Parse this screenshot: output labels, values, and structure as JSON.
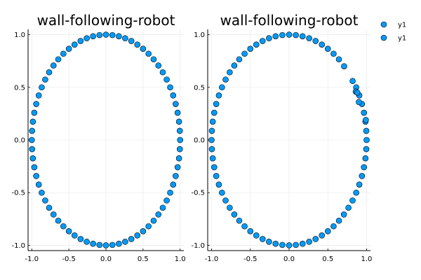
{
  "legend": {
    "position": "top-right",
    "entries": [
      {
        "name": "y1",
        "color": "#009af9"
      },
      {
        "name": "y1",
        "color": "#009af9"
      }
    ]
  },
  "chart_data": [
    {
      "type": "scatter",
      "title": "wall-following-robot",
      "xlabel": "",
      "ylabel": "",
      "xlim": [
        -1.05,
        1.05
      ],
      "ylim": [
        -1.05,
        1.05
      ],
      "xticks": [
        -1.0,
        -0.5,
        0.0,
        0.5,
        1.0
      ],
      "yticks": [
        -1.0,
        -0.5,
        0.0,
        0.5,
        1.0
      ],
      "xtick_labels": [
        "-1.0",
        "-0.5",
        "0.0",
        "0.5",
        "1.0"
      ],
      "ytick_labels": [
        "-1.0",
        "-0.5",
        "0.0",
        "0.5",
        "1.0"
      ],
      "grid": true,
      "marker_color": "#009af9",
      "marker_edge_color": "#000000",
      "series": [
        {
          "name": "y1",
          "shape": "full unit circle, dense and uniform",
          "x": [
            1.0,
            0.996,
            0.985,
            0.966,
            0.94,
            0.906,
            0.866,
            0.819,
            0.766,
            0.707,
            0.643,
            0.574,
            0.5,
            0.423,
            0.342,
            0.259,
            0.174,
            0.087,
            0.0,
            -0.087,
            -0.174,
            -0.259,
            -0.342,
            -0.423,
            -0.5,
            -0.574,
            -0.643,
            -0.707,
            -0.766,
            -0.819,
            -0.866,
            -0.906,
            -0.94,
            -0.966,
            -0.985,
            -0.996,
            -1.0,
            -0.996,
            -0.985,
            -0.966,
            -0.94,
            -0.906,
            -0.866,
            -0.819,
            -0.766,
            -0.707,
            -0.643,
            -0.574,
            -0.5,
            -0.423,
            -0.342,
            -0.259,
            -0.174,
            -0.087,
            0.0,
            0.087,
            0.174,
            0.259,
            0.342,
            0.423,
            0.5,
            0.574,
            0.643,
            0.707,
            0.766,
            0.819,
            0.866,
            0.906,
            0.94,
            0.966,
            0.985,
            0.996
          ],
          "y": [
            0.0,
            0.087,
            0.174,
            0.259,
            0.342,
            0.423,
            0.5,
            0.574,
            0.643,
            0.707,
            0.766,
            0.819,
            0.866,
            0.906,
            0.94,
            0.966,
            0.985,
            0.996,
            1.0,
            0.996,
            0.985,
            0.966,
            0.94,
            0.906,
            0.866,
            0.819,
            0.766,
            0.707,
            0.643,
            0.574,
            0.5,
            0.423,
            0.342,
            0.259,
            0.174,
            0.087,
            0.0,
            -0.087,
            -0.174,
            -0.259,
            -0.342,
            -0.423,
            -0.5,
            -0.574,
            -0.643,
            -0.707,
            -0.766,
            -0.819,
            -0.866,
            -0.906,
            -0.94,
            -0.966,
            -0.985,
            -0.996,
            -1.0,
            -0.996,
            -0.985,
            -0.966,
            -0.94,
            -0.906,
            -0.866,
            -0.819,
            -0.766,
            -0.707,
            -0.643,
            -0.574,
            -0.5,
            -0.423,
            -0.342,
            -0.259,
            -0.174,
            -0.087
          ]
        }
      ]
    },
    {
      "type": "scatter",
      "title": "wall-following-robot",
      "xlabel": "",
      "ylabel": "",
      "xlim": [
        -1.05,
        1.05
      ],
      "ylim": [
        -1.05,
        1.05
      ],
      "xticks": [
        -1.0,
        -0.5,
        0.0,
        0.5,
        1.0
      ],
      "yticks": [
        -1.0,
        -0.5,
        0.0,
        0.5,
        1.0
      ],
      "xtick_labels": [
        "-1.0",
        "-0.5",
        "0.0",
        "0.5",
        "1.0"
      ],
      "ytick_labels": [
        "-1.0",
        "-0.5",
        "0.0",
        "0.5",
        "1.0"
      ],
      "grid": true,
      "marker_color": "#009af9",
      "marker_edge_color": "#000000",
      "series": [
        {
          "name": "y1",
          "shape": "unit circle with sparse points in upper-right quadrant",
          "x": [
            1.0,
            0.996,
            0.985,
            0.966,
            0.94,
            0.906,
            0.866,
            0.0,
            -0.087,
            -0.174,
            -0.259,
            -0.342,
            -0.423,
            -0.5,
            -0.574,
            -0.643,
            -0.707,
            -0.766,
            -0.819,
            -0.866,
            -0.906,
            -0.94,
            -0.966,
            -0.985,
            -0.996,
            -1.0,
            -0.996,
            -0.985,
            -0.966,
            -0.94,
            -0.906,
            -0.866,
            -0.819,
            -0.766,
            -0.707,
            -0.643,
            -0.574,
            -0.5,
            -0.423,
            -0.342,
            -0.259,
            -0.174,
            -0.087,
            0.0,
            0.087,
            0.174,
            0.259,
            0.342,
            0.423,
            0.5,
            0.574,
            0.643,
            0.707,
            0.766,
            0.819,
            0.866,
            0.906,
            0.94,
            0.966,
            0.985,
            0.996,
            0.087,
            0.174,
            0.259,
            0.342,
            0.423,
            0.5,
            0.574,
            0.643,
            0.71,
            0.82,
            0.86,
            0.88,
            0.9,
            0.99
          ],
          "y": [
            0.0,
            0.087,
            0.174,
            0.259,
            0.342,
            0.423,
            0.5,
            1.0,
            0.996,
            0.985,
            0.966,
            0.94,
            0.906,
            0.866,
            0.819,
            0.766,
            0.707,
            0.643,
            0.574,
            0.5,
            0.423,
            0.342,
            0.259,
            0.174,
            0.087,
            0.0,
            -0.087,
            -0.174,
            -0.259,
            -0.342,
            -0.423,
            -0.5,
            -0.574,
            -0.643,
            -0.707,
            -0.766,
            -0.819,
            -0.866,
            -0.906,
            -0.94,
            -0.966,
            -0.985,
            -0.996,
            -1.0,
            -0.996,
            -0.985,
            -0.966,
            -0.94,
            -0.906,
            -0.866,
            -0.819,
            -0.766,
            -0.707,
            -0.643,
            -0.574,
            -0.5,
            -0.423,
            -0.342,
            -0.259,
            -0.174,
            -0.087,
            0.996,
            0.985,
            0.966,
            0.94,
            0.906,
            0.866,
            0.819,
            0.766,
            0.7,
            0.56,
            0.46,
            0.45,
            0.36,
            0.19
          ]
        }
      ]
    }
  ]
}
